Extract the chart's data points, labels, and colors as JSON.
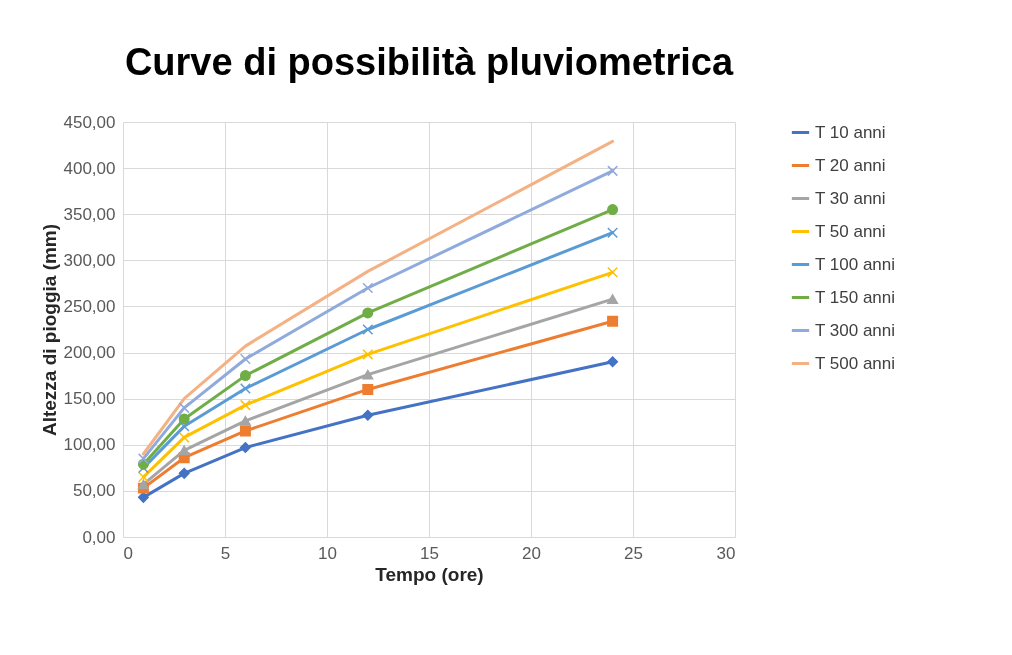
{
  "chart_data": {
    "type": "line",
    "title": "Curve di possibilità pluviometrica",
    "xlabel": "Tempo (ore)",
    "ylabel": "Altezza di pioggia (mm)",
    "x": [
      1,
      3,
      6,
      12,
      24
    ],
    "series": [
      {
        "name": "T 10 anni",
        "color": "#4472c4",
        "marker": "diamond",
        "values": [
          43,
          69,
          97,
          132,
          190
        ]
      },
      {
        "name": "T 20 anni",
        "color": "#ed7d31",
        "marker": "square",
        "values": [
          53,
          86,
          115,
          160,
          234
        ]
      },
      {
        "name": "T 30 anni",
        "color": "#a5a5a5",
        "marker": "triangle",
        "values": [
          57,
          94,
          126,
          176,
          258
        ]
      },
      {
        "name": "T 50 anni",
        "color": "#ffc000",
        "marker": "cross",
        "values": [
          65,
          108,
          143,
          198,
          287
        ]
      },
      {
        "name": "T 100 anni",
        "color": "#5b9bd5",
        "marker": "cross",
        "values": [
          75,
          120,
          161,
          225,
          330
        ]
      },
      {
        "name": "T 150 anni",
        "color": "#70ad47",
        "marker": "circle",
        "values": [
          79,
          128,
          175,
          243,
          355
        ]
      },
      {
        "name": "T 300 anni",
        "color": "#8faadc",
        "marker": "cross",
        "values": [
          85,
          140,
          193,
          270,
          397
        ]
      },
      {
        "name": "T 500 anni",
        "color": "#f4b183",
        "marker": "none",
        "values": [
          90,
          150,
          207,
          288,
          429
        ]
      }
    ],
    "xlim": [
      0,
      30
    ],
    "xticks": [
      0,
      5,
      10,
      15,
      20,
      25,
      30
    ],
    "ylim": [
      0,
      450
    ],
    "yticks": [
      {
        "value": 0,
        "label": "0,00"
      },
      {
        "value": 50,
        "label": "50,00"
      },
      {
        "value": 100,
        "label": "100,00"
      },
      {
        "value": 150,
        "label": "150,00"
      },
      {
        "value": 200,
        "label": "200,00"
      },
      {
        "value": 250,
        "label": "250,00"
      },
      {
        "value": 300,
        "label": "300,00"
      },
      {
        "value": 350,
        "label": "350,00"
      },
      {
        "value": 400,
        "label": "400,00"
      },
      {
        "value": 450,
        "label": "450,00"
      }
    ],
    "grid": true,
    "legend": "right",
    "line_style": "solid"
  }
}
